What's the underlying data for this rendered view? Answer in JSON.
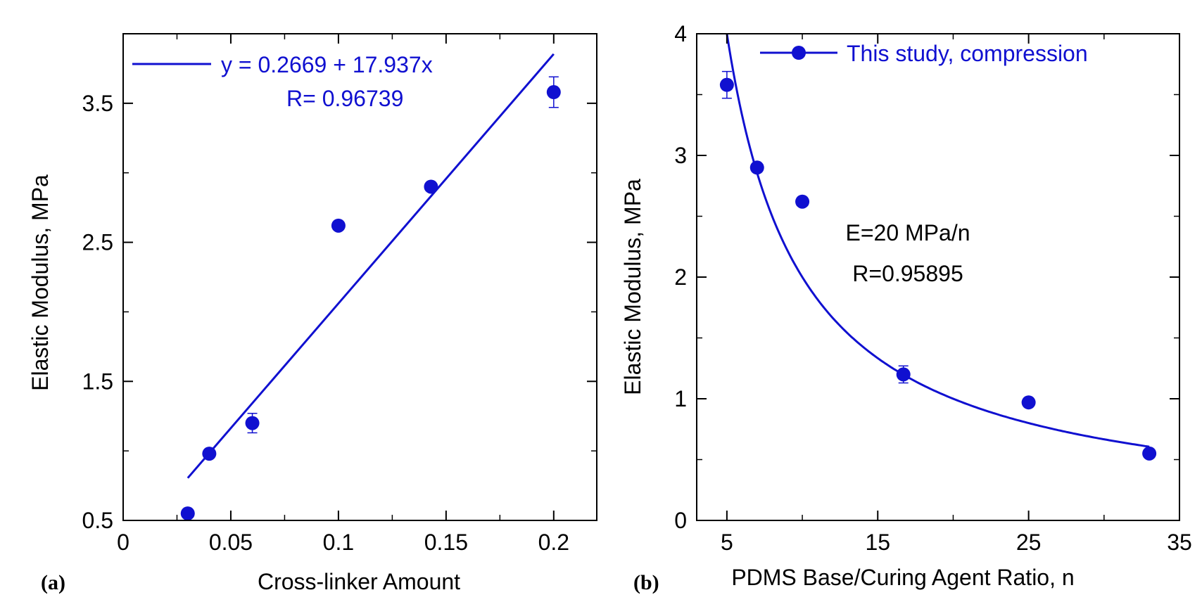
{
  "colors": {
    "series": "#1010d0",
    "axis": "#000000",
    "background": "#ffffff"
  },
  "chart_data": [
    {
      "panel_label": "(a)",
      "type": "scatter",
      "xlabel": "Cross-linker Amount",
      "ylabel": "Elastic Modulus, MPa",
      "xlim": [
        0,
        0.22
      ],
      "ylim": [
        0.5,
        4.0
      ],
      "x_ticks": [
        0,
        0.05,
        0.1,
        0.15,
        0.2
      ],
      "x_tick_labels": [
        "0",
        "0.05",
        "0.1",
        "0.15",
        "0.2"
      ],
      "x_minor_ticks": [
        0.025,
        0.075,
        0.125,
        0.175
      ],
      "y_ticks": [
        0.5,
        1.5,
        2.5,
        3.5
      ],
      "y_tick_labels": [
        "0.5",
        "1.5",
        "2.5",
        "3.5"
      ],
      "y_minor_ticks": [
        1.0,
        2.0,
        3.0
      ],
      "grid": false,
      "series": [
        {
          "points": [
            {
              "x": 0.03,
              "y": 0.55
            },
            {
              "x": 0.04,
              "y": 0.98
            },
            {
              "x": 0.06,
              "y": 1.2,
              "err": 0.07
            },
            {
              "x": 0.1,
              "y": 2.62
            },
            {
              "x": 0.143,
              "y": 2.9
            },
            {
              "x": 0.2,
              "y": 3.58,
              "err": 0.11
            }
          ]
        }
      ],
      "fit": {
        "kind": "linear",
        "intercept": 0.2669,
        "slope": 17.937,
        "x_range": [
          0.03,
          0.2
        ],
        "equation": "y = 0.2669 + 17.937x",
        "r_label": "R= 0.96739"
      },
      "legend_position": "top-left"
    },
    {
      "panel_label": "(b)",
      "type": "scatter",
      "xlabel": "PDMS Base/Curing Agent Ratio, n",
      "ylabel": "Elastic Modulus, MPa",
      "xlim": [
        3,
        35
      ],
      "ylim": [
        0,
        4
      ],
      "x_ticks": [
        5,
        15,
        25,
        35
      ],
      "x_tick_labels": [
        "5",
        "15",
        "25",
        "35"
      ],
      "x_minor_ticks": [
        10,
        20,
        30
      ],
      "y_ticks": [
        0,
        1,
        2,
        3,
        4
      ],
      "y_tick_labels": [
        "0",
        "1",
        "2",
        "3",
        "4"
      ],
      "y_minor_ticks": [
        0.5,
        1.5,
        2.5,
        3.5
      ],
      "grid": false,
      "series": [
        {
          "name": "This study, compression",
          "points": [
            {
              "x": 5,
              "y": 3.58,
              "err": 0.11
            },
            {
              "x": 7,
              "y": 2.9
            },
            {
              "x": 10,
              "y": 2.62
            },
            {
              "x": 16.7,
              "y": 1.2,
              "err": 0.07
            },
            {
              "x": 25,
              "y": 0.97
            },
            {
              "x": 33,
              "y": 0.55
            }
          ]
        }
      ],
      "fit": {
        "kind": "reciprocal",
        "numerator": 20,
        "x_range": [
          5,
          33
        ],
        "equation": "E=20 MPa/n",
        "r_label": "R=0.95895"
      },
      "legend_position": "top-right"
    }
  ]
}
